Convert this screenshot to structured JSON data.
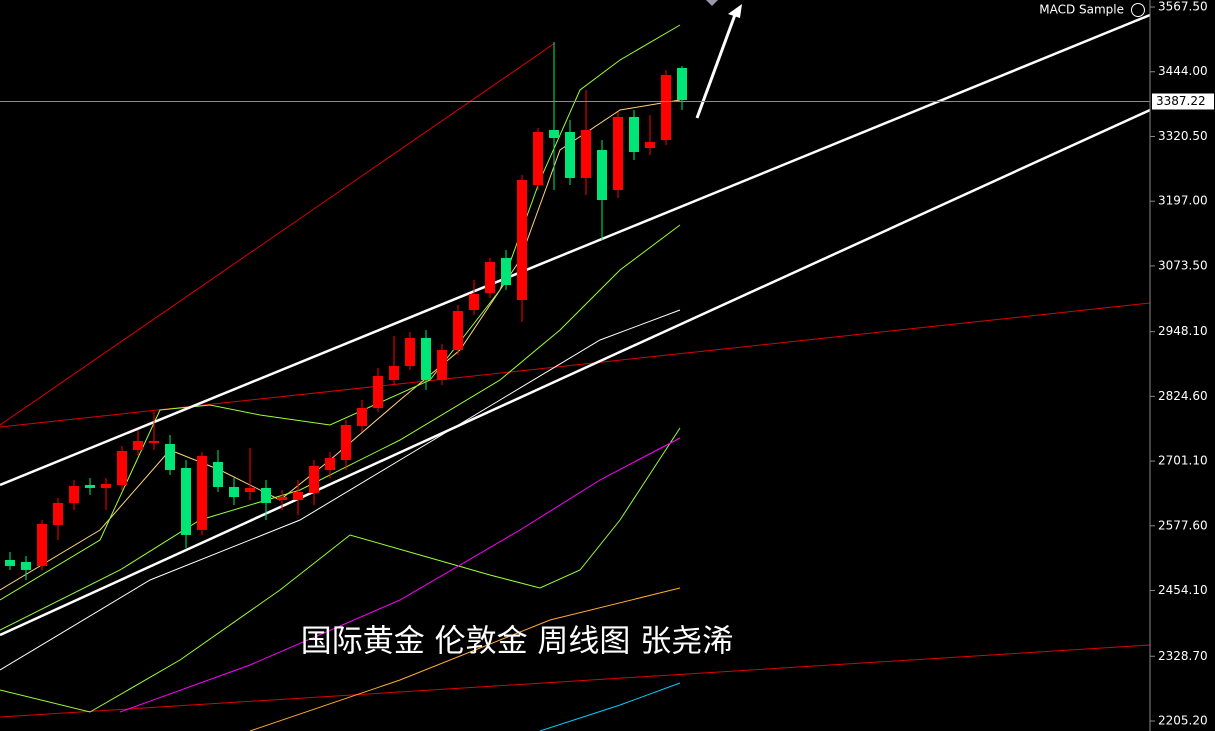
{
  "chart_data": {
    "type": "candlestick",
    "title": "MACD Sample",
    "annotation": "国际黄金 伦敦金 周线图 张尧浠",
    "categories": [
      null,
      null,
      null,
      null,
      null,
      null,
      null,
      null,
      null,
      null,
      null,
      null,
      null,
      null,
      null,
      null,
      null,
      null,
      null,
      null,
      null,
      null,
      null,
      null,
      null,
      null,
      null,
      null,
      null,
      null,
      null,
      null,
      null,
      null,
      null,
      null,
      null,
      null,
      null,
      null,
      null,
      null,
      null
    ],
    "up_color": "#ff0000",
    "down_color": "#00e676",
    "open": [
      2512.4,
      2508.6,
      2501.0,
      2579.2,
      2621.2,
      2655.5,
      2649.8,
      2655.5,
      2722.3,
      2735.7,
      2733.8,
      2687.9,
      2569.7,
      2699.4,
      2651.7,
      2642.2,
      2649.8,
      2626.9,
      2626.9,
      2640.3,
      2684.1,
      2703.2,
      2768.1,
      2802.4,
      2855.9,
      2882.6,
      2936.0,
      2855.9,
      2913.1,
      2989.4,
      3021.9,
      3088.6,
      3008.5,
      3227.9,
      3332.9,
      3329.0,
      3241.3,
      3294.7,
      3218.4,
      3357.7,
      3298.5,
      3313.8,
      3451.2
    ],
    "high": [
      2527.7,
      2520.1,
      2588.7,
      2630.7,
      2665.1,
      2668.9,
      2668.9,
      2729.9,
      2760.5,
      2794.8,
      2750.9,
      2703.2,
      2718.5,
      2722.3,
      2668.9,
      2726.1,
      2665.1,
      2646.0,
      2665.1,
      2703.2,
      2718.5,
      2779.5,
      2817.7,
      2878.8,
      2939.8,
      2947.4,
      2951.3,
      2924.5,
      2999.0,
      3046.7,
      3088.6,
      3103.9,
      3247.0,
      3336.7,
      3500.8,
      3351.9,
      3409.2,
      3313.8,
      3367.2,
      3371.0,
      3361.5,
      3447.3,
      3455.0
    ],
    "low": [
      2493.4,
      2474.3,
      2493.4,
      2550.6,
      2607.8,
      2636.4,
      2607.8,
      2646.0,
      2712.8,
      2722.3,
      2674.6,
      2535.3,
      2560.1,
      2642.2,
      2617.4,
      2626.9,
      2588.7,
      2607.8,
      2598.3,
      2617.4,
      2668.9,
      2684.1,
      2756.6,
      2794.8,
      2846.3,
      2875.0,
      2836.8,
      2846.3,
      2903.6,
      2979.9,
      3012.3,
      3027.6,
      2966.5,
      3218.4,
      3218.4,
      3227.9,
      3208.8,
      3123.0,
      3203.1,
      3275.6,
      3285.2,
      3304.2,
      3371.0
    ],
    "close": [
      2501.0,
      2493.4,
      2581.1,
      2621.2,
      2653.6,
      2649.8,
      2657.4,
      2720.4,
      2739.5,
      2739.5,
      2684.1,
      2560.1,
      2710.9,
      2651.7,
      2632.6,
      2649.8,
      2621.2,
      2632.6,
      2642.2,
      2691.8,
      2707.0,
      2770.0,
      2802.4,
      2863.5,
      2882.6,
      2936.0,
      2855.9,
      2913.1,
      2987.5,
      3019.9,
      3081.0,
      3037.1,
      3237.5,
      3329.0,
      3317.6,
      3241.3,
      3332.9,
      3199.3,
      3357.7,
      3290.9,
      3310.0,
      3437.8,
      3390.1
    ],
    "current_price": 3387.22,
    "ylim": [
      2186.1,
      3580.9
    ],
    "yticks": [
      {
        "value": 2205.2,
        "label": "2205.20"
      },
      {
        "value": 2328.7,
        "label": "2328.70"
      },
      {
        "value": 2454.1,
        "label": "2454.10"
      },
      {
        "value": 2577.6,
        "label": "2577.60"
      },
      {
        "value": 2701.1,
        "label": "2701.10"
      },
      {
        "value": 2824.6,
        "label": "2824.60"
      },
      {
        "value": 2948.1,
        "label": "2948.10"
      },
      {
        "value": 3073.5,
        "label": "3073.50"
      },
      {
        "value": 3197,
        "label": "3197.00"
      },
      {
        "value": 3320.5,
        "label": "3320.50"
      },
      {
        "value": 3444,
        "label": "3444.00"
      },
      {
        "value": 3567.5,
        "label": "3567.50"
      }
    ]
  }
}
